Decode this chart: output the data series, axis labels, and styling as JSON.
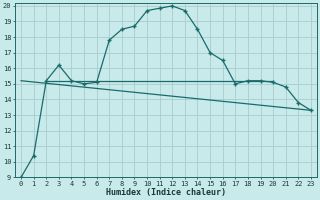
{
  "xlabel": "Humidex (Indice chaleur)",
  "bg_color": "#c8eaea",
  "grid_color": "#aacccc",
  "line_color": "#1a6b6b",
  "xlim": [
    -0.5,
    23.5
  ],
  "ylim": [
    9,
    20.2
  ],
  "xticks": [
    0,
    1,
    2,
    3,
    4,
    5,
    6,
    7,
    8,
    9,
    10,
    11,
    12,
    13,
    14,
    15,
    16,
    17,
    18,
    19,
    20,
    21,
    22,
    23
  ],
  "yticks": [
    9,
    10,
    11,
    12,
    13,
    14,
    15,
    16,
    17,
    18,
    19,
    20
  ],
  "curve1_x": [
    0,
    1,
    2,
    3,
    4,
    5,
    6,
    7,
    8,
    9,
    10,
    11,
    12,
    13,
    14,
    15,
    16,
    17,
    18,
    19,
    20,
    21,
    22,
    23
  ],
  "curve1_y": [
    9.0,
    10.4,
    15.2,
    16.2,
    15.2,
    15.0,
    15.1,
    17.8,
    18.5,
    18.7,
    19.7,
    19.85,
    20.0,
    19.7,
    18.5,
    17.0,
    16.5,
    15.0,
    15.2,
    15.2,
    15.1,
    14.8,
    13.8,
    13.3
  ],
  "curve2_x": [
    0,
    23
  ],
  "curve2_y": [
    15.2,
    13.3
  ],
  "curve3_x": [
    2,
    20
  ],
  "curve3_y": [
    15.2,
    15.2
  ],
  "tick_fontsize": 5.0,
  "xlabel_fontsize": 6.0
}
